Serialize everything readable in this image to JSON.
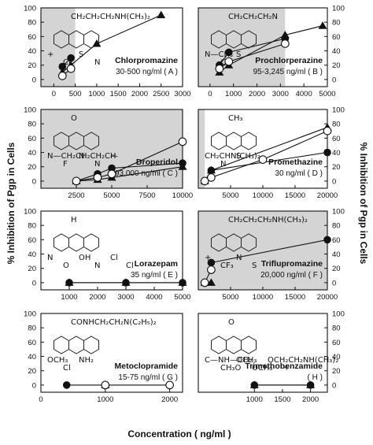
{
  "chart_data": {
    "type": "line",
    "ylabel_left": "% Inhibition of Pgp in Cells",
    "ylabel_right": "% Inhibition of Pgp in Cells",
    "xlabel": "Concentration ( ng/ml )",
    "yticks": [
      "0",
      "20",
      "40",
      "60",
      "80",
      "100"
    ],
    "panels": [
      {
        "key": "A",
        "drug": "Chlorpromazine",
        "conc": "30-500 ng/ml ( A )",
        "xlim": [
          -300,
          3000
        ],
        "xticks": [
          0,
          500,
          1000,
          1500,
          2000,
          2500,
          3000
        ],
        "yaxis": "left",
        "bands": [
          [
            -300,
            500
          ]
        ],
        "structure": [
          "CH₂CH₂CH₂NH(CH₃)₂",
          "+",
          "Cl",
          "S",
          "N"
        ],
        "series": [
          {
            "marker": "triangle",
            "points": [
              [
                200,
                10
              ],
              [
                400,
                20
              ],
              [
                1000,
                50
              ],
              [
                2500,
                90
              ]
            ]
          },
          {
            "marker": "circle-filled",
            "points": [
              [
                200,
                18
              ],
              [
                400,
                30
              ]
            ]
          },
          {
            "marker": "circle-open",
            "points": [
              [
                200,
                5
              ],
              [
                400,
                15
              ]
            ]
          }
        ]
      },
      {
        "key": "B",
        "drug": "Prochlorperazine",
        "conc": "95-3,245 ng/ml ( B )",
        "xlim": [
          -500,
          5000
        ],
        "xticks": [
          0,
          1000,
          2000,
          3000,
          4000,
          5000
        ],
        "yaxis": "right",
        "bands": [
          [
            -500,
            3200
          ]
        ],
        "structure": [
          "CH₂CH₂CH₂N",
          "N—CH₃",
          "Cl",
          "S"
        ],
        "series": [
          {
            "marker": "triangle",
            "points": [
              [
                400,
                10
              ],
              [
                800,
                20
              ],
              [
                3200,
                62
              ],
              [
                4800,
                75
              ]
            ]
          },
          {
            "marker": "circle-filled",
            "points": [
              [
                400,
                20
              ],
              [
                800,
                38
              ],
              [
                3200,
                57
              ]
            ]
          },
          {
            "marker": "circle-open",
            "points": [
              [
                400,
                15
              ],
              [
                800,
                25
              ],
              [
                3200,
                50
              ]
            ]
          }
        ]
      },
      {
        "key": "C",
        "drug": "Droperidol",
        "conc": "93,000 ng/ml ( C )",
        "xlim": [
          0,
          10000
        ],
        "xticks": [
          2500,
          5000,
          7500,
          10000
        ],
        "yaxis": "left",
        "bands": [
          [
            0,
            10000
          ]
        ],
        "structure": [
          "O",
          "N—CH₂CH₂CH₂C—",
          "F",
          "N",
          "N",
          "H"
        ],
        "series": [
          {
            "marker": "triangle",
            "points": [
              [
                2500,
                0
              ],
              [
                4000,
                2
              ],
              [
                5000,
                5
              ],
              [
                10000,
                20
              ]
            ]
          },
          {
            "marker": "circle-filled",
            "points": [
              [
                2500,
                0
              ],
              [
                4000,
                10
              ],
              [
                5000,
                18
              ],
              [
                10000,
                25
              ]
            ]
          },
          {
            "marker": "circle-open",
            "points": [
              [
                2500,
                0
              ],
              [
                4000,
                5
              ],
              [
                5000,
                10
              ],
              [
                10000,
                55
              ]
            ]
          }
        ]
      },
      {
        "key": "D",
        "drug": "Promethazine",
        "conc": "30 ng/ml ( D )",
        "xlim": [
          0,
          20000
        ],
        "xticks": [
          5000,
          10000,
          15000,
          20000
        ],
        "yaxis": "right",
        "bands": [
          [
            0,
            1000
          ]
        ],
        "structure": [
          "CH₃",
          "CH₂CHN(CH₃)₂",
          "N",
          "S"
        ],
        "series": [
          {
            "marker": "triangle",
            "points": [
              [
                1000,
                0
              ],
              [
                2000,
                15
              ],
              [
                20000,
                75
              ]
            ]
          },
          {
            "marker": "circle-filled",
            "points": [
              [
                1000,
                0
              ],
              [
                2000,
                15
              ],
              [
                20000,
                40
              ]
            ]
          },
          {
            "marker": "circle-open",
            "points": [
              [
                1000,
                0
              ],
              [
                2000,
                5
              ],
              [
                10000,
                30
              ],
              [
                20000,
                70
              ]
            ]
          }
        ]
      },
      {
        "key": "E",
        "drug": "Lorazepam",
        "conc": "35 ng/ml ( E )",
        "xlim": [
          0,
          5000
        ],
        "xticks": [
          1000,
          2000,
          3000,
          4000,
          5000
        ],
        "yaxis": "left",
        "bands": [],
        "structure": [
          "H",
          "N",
          "O",
          "OH",
          "N",
          "Cl",
          "Cl"
        ],
        "series": [
          {
            "marker": "triangle",
            "points": [
              [
                1000,
                0
              ],
              [
                3000,
                0
              ],
              [
                5000,
                0
              ]
            ]
          },
          {
            "marker": "circle-filled",
            "points": [
              [
                1000,
                0
              ],
              [
                3000,
                0
              ],
              [
                5000,
                0
              ]
            ]
          }
        ]
      },
      {
        "key": "F",
        "drug": "Triflupromazine",
        "conc": "20,000 ng/ml ( F )",
        "xlim": [
          0,
          20000
        ],
        "xticks": [
          5000,
          10000,
          15000,
          20000
        ],
        "yaxis": "right",
        "bands": [
          [
            0,
            20000
          ]
        ],
        "structure": [
          "CH₂CH₂CH₂NH(CH₃)₂",
          "+",
          "CF₃",
          "N",
          "S"
        ],
        "series": [
          {
            "marker": "triangle",
            "points": [
              [
                1000,
                0
              ],
              [
                2000,
                0
              ]
            ]
          },
          {
            "marker": "circle-filled",
            "points": [
              [
                2000,
                28
              ],
              [
                20000,
                60
              ]
            ]
          },
          {
            "marker": "circle-open",
            "points": [
              [
                1000,
                0
              ],
              [
                2000,
                18
              ]
            ]
          }
        ]
      },
      {
        "key": "G",
        "drug": "Metoclopramide",
        "conc": "15-75 ng/ml ( G )",
        "xlim": [
          0,
          2200
        ],
        "xticks": [
          0,
          1000,
          2000
        ],
        "yaxis": "left",
        "bands": [],
        "structure": [
          "CONHCH₂CH₂N(C₂H₅)₂",
          "OCH₃",
          "Cl",
          "NH₂"
        ],
        "series": [
          {
            "marker": "triangle",
            "points": [
              [
                1000,
                0
              ]
            ]
          },
          {
            "marker": "circle-filled",
            "points": [
              [
                400,
                0
              ],
              [
                1000,
                0
              ]
            ]
          },
          {
            "marker": "circle-open",
            "points": [
              [
                1000,
                0
              ],
              [
                2000,
                0
              ]
            ]
          }
        ]
      },
      {
        "key": "H",
        "drug": "Trimethobenzamide",
        "conc": "( H )",
        "xlim": [
          0,
          2300
        ],
        "xticks": [
          1000,
          1500,
          2000
        ],
        "yaxis": "right",
        "bands": [],
        "structure": [
          "O",
          "C—NH—CH₂",
          "CH₃O",
          "OCH₃",
          "OCH₃",
          "OCH₂CH₂NH(CH₃)₂",
          "+"
        ],
        "series": [
          {
            "marker": "triangle",
            "points": [
              [
                1000,
                0
              ],
              [
                2000,
                0
              ]
            ]
          },
          {
            "marker": "circle-filled",
            "points": [
              [
                1000,
                0
              ],
              [
                2000,
                0
              ]
            ]
          }
        ]
      }
    ]
  }
}
